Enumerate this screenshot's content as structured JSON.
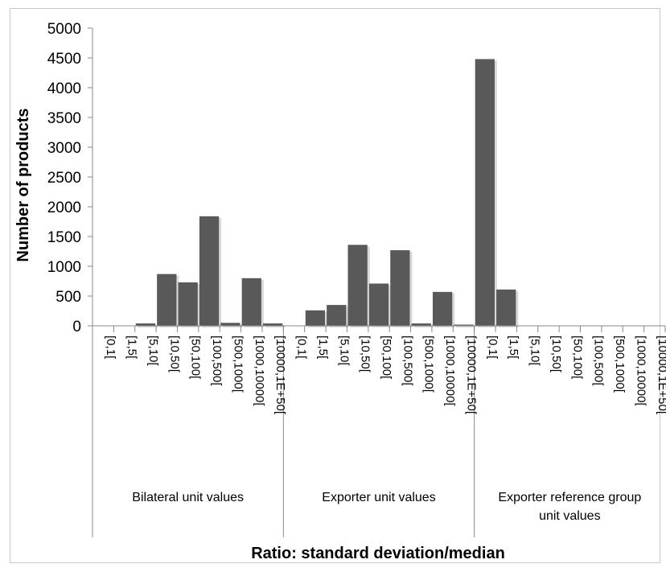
{
  "chart_data": {
    "type": "bar",
    "ylabel": "Number of products",
    "xlabel": "Ratio: standard deviation/median",
    "ylim": [
      0,
      5000
    ],
    "yticks": [
      0,
      500,
      1000,
      1500,
      2000,
      2500,
      3000,
      3500,
      4000,
      4500,
      5000
    ],
    "grid": false,
    "bar_color": "#595959",
    "categories": [
      "[0,1[",
      "[1,5[",
      "[5,10[",
      "[10,50[",
      "[50,100[",
      "[100,500[",
      "[500,1000[",
      "[1000,10000[",
      "[10000,1E+50["
    ],
    "groups": [
      {
        "name": "Bilateral unit values",
        "values": [
          0,
          0,
          40,
          870,
          730,
          1840,
          50,
          800,
          40
        ]
      },
      {
        "name": "Exporter unit values",
        "values": [
          0,
          260,
          350,
          1360,
          710,
          1270,
          40,
          570,
          20
        ]
      },
      {
        "name": "Exporter reference group unit values",
        "name_lines": [
          "Exporter reference group",
          "unit values"
        ],
        "values": [
          4480,
          610,
          0,
          0,
          0,
          0,
          0,
          0,
          0
        ]
      }
    ]
  }
}
